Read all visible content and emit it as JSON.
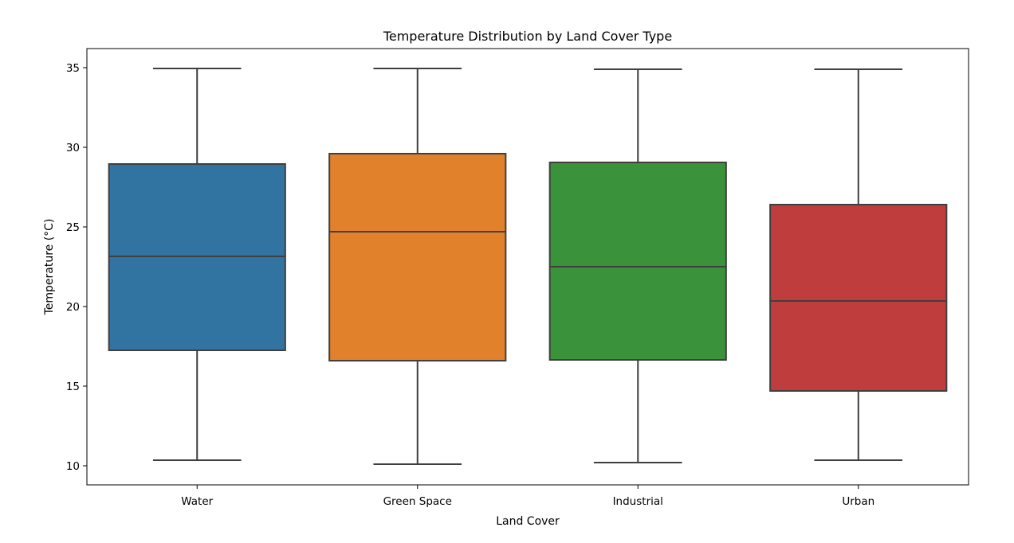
{
  "chart_data": {
    "type": "box",
    "title": "Temperature Distribution by Land Cover Type",
    "xlabel": "Land Cover",
    "ylabel": "Temperature (°C)",
    "ylim": [
      8.8,
      36.2
    ],
    "yticks": [
      10,
      15,
      20,
      25,
      30,
      35
    ],
    "categories": [
      "Water",
      "Green Space",
      "Industrial",
      "Urban"
    ],
    "boxes": [
      {
        "category": "Water",
        "min": 10.35,
        "q1": 17.25,
        "median": 23.15,
        "q3": 28.95,
        "max": 34.95,
        "color": "#3274a1"
      },
      {
        "category": "Green Space",
        "min": 10.1,
        "q1": 16.6,
        "median": 24.7,
        "q3": 29.6,
        "max": 34.95,
        "color": "#e1812c"
      },
      {
        "category": "Industrial",
        "min": 10.2,
        "q1": 16.65,
        "median": 22.5,
        "q3": 29.05,
        "max": 34.9,
        "color": "#3a923a"
      },
      {
        "category": "Urban",
        "min": 10.35,
        "q1": 14.7,
        "median": 20.35,
        "q3": 26.4,
        "max": 34.9,
        "color": "#c03d3e"
      }
    ],
    "grid": false,
    "legend": "none"
  }
}
